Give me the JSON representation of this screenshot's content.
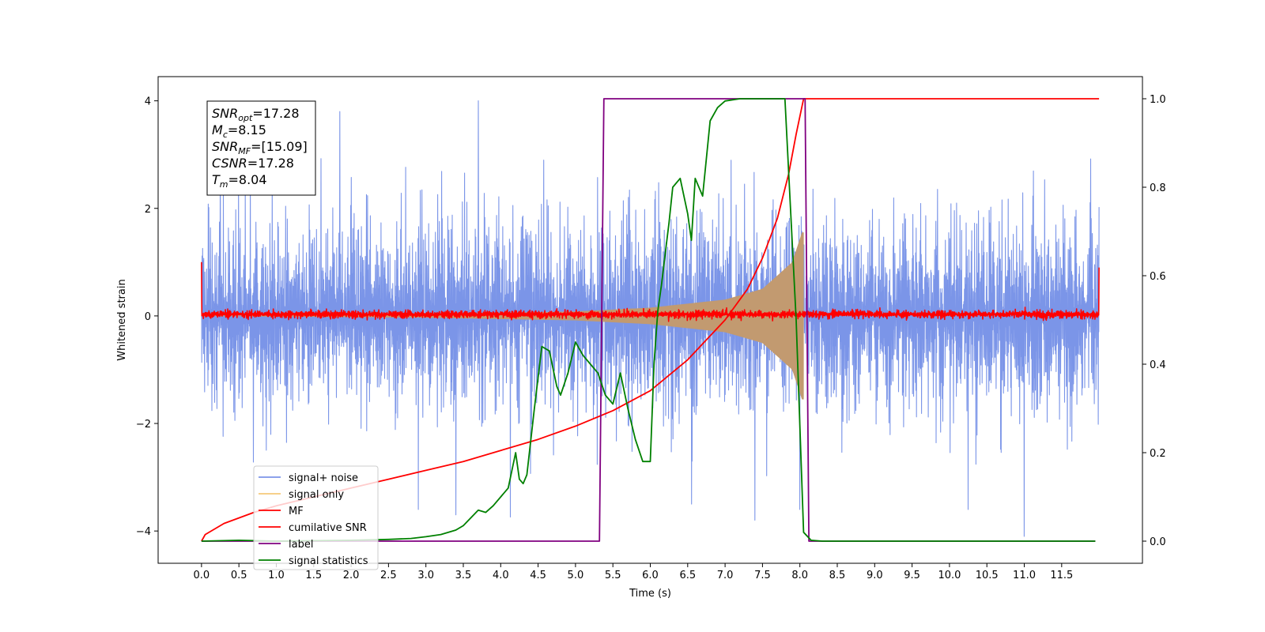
{
  "chart_data": {
    "type": "line",
    "xlabel": "Time (s)",
    "ylabel_left": "Whitened strain",
    "ylabel_right": "",
    "xlim": [
      -0.58,
      12.58
    ],
    "ylim_left": [
      -4.6,
      4.45
    ],
    "ylim_right": [
      -0.05,
      1.05
    ],
    "x_ticks": [
      0.0,
      0.5,
      1.0,
      1.5,
      2.0,
      2.5,
      3.0,
      3.5,
      4.0,
      4.5,
      5.0,
      5.5,
      6.0,
      6.5,
      7.0,
      7.5,
      8.0,
      8.5,
      9.0,
      9.5,
      10.0,
      10.5,
      11.0,
      11.5
    ],
    "x_tick_labels": [
      "0.0",
      "0.5",
      "1.0",
      "1.5",
      "2.0",
      "2.5",
      "3.0",
      "3.5",
      "4.0",
      "4.5",
      "5.0",
      "5.5",
      "6.0",
      "6.5",
      "7.0",
      "7.5",
      "8.0",
      "8.5",
      "9.0",
      "9.5",
      "10.0",
      "10.5",
      "11.0",
      "11.5"
    ],
    "y_ticks_left": [
      -4,
      -2,
      0,
      2,
      4
    ],
    "y_tick_labels_left": [
      "−4",
      "−2",
      "0",
      "2",
      "4"
    ],
    "y_ticks_right": [
      0.0,
      0.2,
      0.4,
      0.6,
      0.8,
      1.0
    ],
    "y_tick_labels_right": [
      "0.0",
      "0.2",
      "0.4",
      "0.6",
      "0.8",
      "1.0"
    ],
    "grid": false,
    "legend_position": "bottom-left",
    "annotation": {
      "lines": [
        {
          "base": "SNR",
          "sub": "opt",
          "value": "=17.28"
        },
        {
          "base": "M",
          "sub": "c",
          "value": "=8.15"
        },
        {
          "base": "SNR",
          "sub": "MF",
          "value": "=[15.09]"
        },
        {
          "base": "CSNR",
          "sub": "",
          "value": "=17.28"
        },
        {
          "base": "T",
          "sub": "m",
          "value": "=8.04"
        }
      ]
    },
    "series": [
      {
        "name": "signal+ noise",
        "axis": "left",
        "color": "#7b95e8",
        "style": "noise",
        "x_range": [
          0.0,
          12.0
        ],
        "envelope_typical": 1.7,
        "envelope_peak": 4.0,
        "spikes": [
          [
            3.7,
            4.0
          ],
          [
            0.25,
            2.9
          ],
          [
            1.85,
            3.8
          ],
          [
            11.0,
            -4.1
          ],
          [
            7.4,
            -3.8
          ],
          [
            3.4,
            -3.7
          ],
          [
            2.9,
            -3.6
          ],
          [
            6.55,
            -3.5
          ],
          [
            10.25,
            -3.6
          ],
          [
            8.0,
            -3.6
          ]
        ]
      },
      {
        "name": "signal only",
        "axis": "left",
        "color": "#c29a70",
        "style": "chirp",
        "x_range": [
          0.0,
          8.05
        ],
        "amplitude_points": [
          [
            0.0,
            0.0
          ],
          [
            3.0,
            0.03
          ],
          [
            5.0,
            0.08
          ],
          [
            6.0,
            0.15
          ],
          [
            7.0,
            0.3
          ],
          [
            7.5,
            0.5
          ],
          [
            7.9,
            1.0
          ],
          [
            8.03,
            1.55
          ]
        ]
      },
      {
        "name": "MF",
        "axis": "left",
        "color": "#ff0000",
        "style": "noise",
        "x_range": [
          0.0,
          12.0
        ],
        "envelope_typical": 0.07,
        "edge_values": [
          [
            0.0,
            1.0
          ],
          [
            12.0,
            0.9
          ]
        ]
      },
      {
        "name": "cumilative SNR",
        "axis": "right",
        "color": "#ff0000",
        "style": "line",
        "x": [
          0.0,
          0.05,
          0.3,
          0.7,
          1.0,
          1.5,
          2.0,
          2.5,
          3.0,
          3.5,
          4.0,
          4.5,
          5.0,
          5.5,
          6.0,
          6.5,
          7.0,
          7.3,
          7.5,
          7.7,
          7.85,
          7.95,
          8.05,
          8.5,
          9.0,
          10.0,
          11.0,
          12.0
        ],
        "values": [
          0.0,
          0.015,
          0.04,
          0.065,
          0.08,
          0.1,
          0.12,
          0.14,
          0.16,
          0.18,
          0.205,
          0.23,
          0.26,
          0.295,
          0.34,
          0.41,
          0.5,
          0.57,
          0.64,
          0.73,
          0.83,
          0.92,
          1.0,
          1.0,
          1.0,
          1.0,
          1.0,
          1.0
        ]
      },
      {
        "name": "label",
        "axis": "right",
        "color": "#800080",
        "style": "line",
        "x": [
          0.0,
          5.32,
          5.38,
          8.07,
          8.12,
          11.95
        ],
        "values": [
          0.0,
          0.0,
          1.0,
          1.0,
          0.0,
          0.0
        ]
      },
      {
        "name": "signal statistics",
        "axis": "right",
        "color": "#008000",
        "style": "line",
        "x": [
          0.0,
          0.5,
          1.0,
          2.0,
          2.5,
          2.8,
          3.0,
          3.2,
          3.4,
          3.5,
          3.7,
          3.8,
          3.9,
          4.0,
          4.1,
          4.2,
          4.25,
          4.3,
          4.35,
          4.45,
          4.55,
          4.65,
          4.75,
          4.8,
          4.9,
          5.0,
          5.1,
          5.2,
          5.3,
          5.4,
          5.5,
          5.6,
          5.7,
          5.8,
          5.9,
          6.0,
          6.05,
          6.1,
          6.15,
          6.2,
          6.25,
          6.3,
          6.4,
          6.5,
          6.55,
          6.6,
          6.7,
          6.8,
          6.9,
          7.0,
          7.2,
          7.4,
          7.6,
          7.8,
          7.95,
          8.05,
          8.15,
          8.3,
          9.0,
          10.0,
          11.0,
          11.95
        ],
        "values": [
          0.0,
          0.002,
          0.0,
          0.002,
          0.004,
          0.006,
          0.01,
          0.015,
          0.025,
          0.035,
          0.07,
          0.065,
          0.08,
          0.1,
          0.12,
          0.2,
          0.14,
          0.13,
          0.15,
          0.3,
          0.44,
          0.43,
          0.35,
          0.33,
          0.38,
          0.45,
          0.42,
          0.4,
          0.38,
          0.33,
          0.31,
          0.38,
          0.3,
          0.23,
          0.18,
          0.18,
          0.4,
          0.52,
          0.58,
          0.65,
          0.72,
          0.8,
          0.82,
          0.74,
          0.68,
          0.82,
          0.78,
          0.95,
          0.98,
          0.995,
          1.0,
          1.0,
          1.0,
          1.0,
          0.5,
          0.02,
          0.002,
          0.0,
          0.0,
          0.0,
          0.0,
          0.0
        ]
      }
    ]
  }
}
